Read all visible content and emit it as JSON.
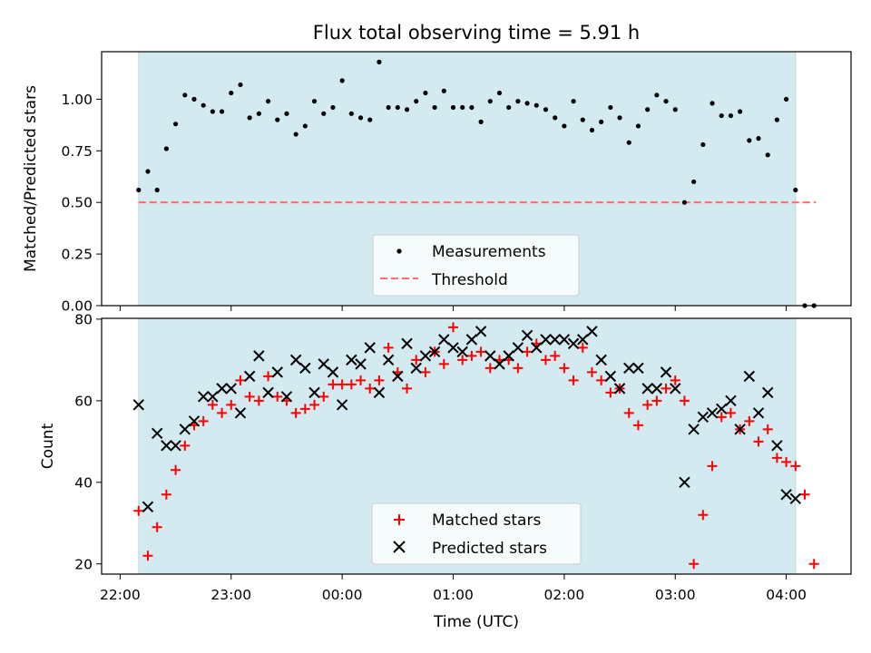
{
  "chart_data": [
    {
      "type": "scatter",
      "title": "Flux total observing time = 5.91 h",
      "ylabel": "Matched/Predicted stars",
      "xlabel": "",
      "ylim": [
        0,
        1.23
      ],
      "xlim": [
        "21:50",
        "04:35"
      ],
      "yticks": [
        "0.00",
        "0.25",
        "0.50",
        "0.75",
        "1.00"
      ],
      "shaded_interval": [
        "22:10",
        "04:05"
      ],
      "shade_color": "#d3eaf0",
      "legend_position": "lower center",
      "legend": [
        "Measurements",
        "Threshold"
      ],
      "threshold": {
        "value": 0.5,
        "from": "22:10",
        "to": "04:16",
        "color": "#ff6b6b"
      },
      "series": [
        {
          "name": "Measurements",
          "color": "#000000",
          "x": [
            "22:10",
            "22:15",
            "22:20",
            "22:25",
            "22:30",
            "22:35",
            "22:40",
            "22:45",
            "22:50",
            "22:55",
            "23:00",
            "23:05",
            "23:10",
            "23:15",
            "23:20",
            "23:25",
            "23:30",
            "23:35",
            "23:40",
            "23:45",
            "23:50",
            "23:55",
            "00:00",
            "00:05",
            "00:10",
            "00:15",
            "00:20",
            "00:25",
            "00:30",
            "00:35",
            "00:40",
            "00:45",
            "00:50",
            "00:55",
            "01:00",
            "01:05",
            "01:10",
            "01:15",
            "01:20",
            "01:25",
            "01:30",
            "01:35",
            "01:40",
            "01:45",
            "01:50",
            "01:55",
            "02:00",
            "02:05",
            "02:10",
            "02:15",
            "02:20",
            "02:25",
            "02:30",
            "02:35",
            "02:40",
            "02:45",
            "02:50",
            "02:55",
            "03:00",
            "03:05",
            "03:10",
            "03:15",
            "03:20",
            "03:25",
            "03:30",
            "03:35",
            "03:40",
            "03:45",
            "03:50",
            "03:55",
            "04:00",
            "04:05",
            "04:10",
            "04:15"
          ],
          "y": [
            0.56,
            0.65,
            0.56,
            0.76,
            0.88,
            1.02,
            1.0,
            0.97,
            0.94,
            0.94,
            1.03,
            1.07,
            0.91,
            0.93,
            0.99,
            0.9,
            0.93,
            0.83,
            0.87,
            0.99,
            0.93,
            0.96,
            1.09,
            0.93,
            0.91,
            0.9,
            1.18,
            0.96,
            0.96,
            0.95,
            0.99,
            1.03,
            0.96,
            1.04,
            0.96,
            0.96,
            0.96,
            0.89,
            0.99,
            1.03,
            0.96,
            0.99,
            0.98,
            0.97,
            0.95,
            0.91,
            0.87,
            0.99,
            0.9,
            0.85,
            0.89,
            0.96,
            0.91,
            0.79,
            0.87,
            0.95,
            1.02,
            0.99,
            0.95,
            0.5,
            0.6,
            0.78,
            0.98,
            0.92,
            0.92,
            0.94,
            0.8,
            0.81,
            0.73,
            0.9,
            1.0,
            0.56,
            0.0,
            0.0
          ]
        }
      ]
    },
    {
      "type": "scatter",
      "title": "",
      "xlabel": "Time (UTC)",
      "ylabel": "Count",
      "ylim": [
        17.5,
        80.2
      ],
      "xlim": [
        "21:50",
        "04:35"
      ],
      "xticks": [
        "22:00",
        "23:00",
        "00:00",
        "01:00",
        "02:00",
        "03:00",
        "04:00"
      ],
      "yticks": [
        "20",
        "40",
        "60",
        "80"
      ],
      "shaded_interval": [
        "22:10",
        "04:05"
      ],
      "shade_color": "#d3eaf0",
      "legend_position": "lower center",
      "legend": [
        "Matched stars",
        "Predicted stars"
      ],
      "series": [
        {
          "name": "Matched stars",
          "color": "#ff0000",
          "x": [
            "22:10",
            "22:15",
            "22:20",
            "22:25",
            "22:30",
            "22:35",
            "22:40",
            "22:45",
            "22:50",
            "22:55",
            "23:00",
            "23:05",
            "23:10",
            "23:15",
            "23:20",
            "23:25",
            "23:30",
            "23:35",
            "23:40",
            "23:45",
            "23:50",
            "23:55",
            "00:00",
            "00:05",
            "00:10",
            "00:15",
            "00:20",
            "00:25",
            "00:30",
            "00:35",
            "00:40",
            "00:45",
            "00:50",
            "00:55",
            "01:00",
            "01:05",
            "01:10",
            "01:15",
            "01:20",
            "01:25",
            "01:30",
            "01:35",
            "01:40",
            "01:45",
            "01:50",
            "01:55",
            "02:00",
            "02:05",
            "02:10",
            "02:15",
            "02:20",
            "02:25",
            "02:30",
            "02:35",
            "02:40",
            "02:45",
            "02:50",
            "02:55",
            "03:00",
            "03:05",
            "03:10",
            "03:15",
            "03:20",
            "03:25",
            "03:30",
            "03:35",
            "03:40",
            "03:45",
            "03:50",
            "03:55",
            "04:00",
            "04:05",
            "04:10",
            "04:15"
          ],
          "y": [
            33,
            22,
            29,
            37,
            43,
            49,
            54,
            55,
            59,
            57,
            59,
            65,
            61,
            60,
            66,
            61,
            60,
            57,
            58,
            59,
            61,
            64,
            64,
            64,
            65,
            63,
            65,
            73,
            67,
            63,
            70,
            67,
            72,
            69,
            78,
            70,
            71,
            72,
            68,
            70,
            70,
            68,
            72,
            74,
            70,
            71,
            68,
            65,
            73,
            67,
            65,
            62,
            63,
            57,
            54,
            59,
            60,
            63,
            65,
            60,
            20,
            32,
            44,
            56,
            57,
            53,
            55,
            50,
            53,
            46,
            45,
            44,
            37,
            20
          ]
        },
        {
          "name": "Predicted stars",
          "color": "#000000",
          "x": [
            "22:10",
            "22:15",
            "22:20",
            "22:25",
            "22:30",
            "22:35",
            "22:40",
            "22:45",
            "22:50",
            "22:55",
            "23:00",
            "23:05",
            "23:10",
            "23:15",
            "23:20",
            "23:25",
            "23:30",
            "23:35",
            "23:40",
            "23:45",
            "23:50",
            "23:55",
            "00:00",
            "00:05",
            "00:10",
            "00:15",
            "00:20",
            "00:25",
            "00:30",
            "00:35",
            "00:40",
            "00:45",
            "00:50",
            "00:55",
            "01:00",
            "01:05",
            "01:10",
            "01:15",
            "01:20",
            "01:25",
            "01:30",
            "01:35",
            "01:40",
            "01:45",
            "01:50",
            "01:55",
            "02:00",
            "02:05",
            "02:10",
            "02:15",
            "02:20",
            "02:25",
            "02:30",
            "02:35",
            "02:40",
            "02:45",
            "02:50",
            "02:55",
            "03:00",
            "03:05",
            "03:10",
            "03:15",
            "03:20",
            "03:25",
            "03:30",
            "03:35",
            "03:40",
            "03:45",
            "03:50",
            "03:55",
            "04:00",
            "04:05"
          ],
          "y": [
            59,
            34,
            52,
            49,
            49,
            53,
            55,
            61,
            61,
            63,
            63,
            57,
            66,
            71,
            62,
            67,
            61,
            70,
            68,
            62,
            69,
            67,
            59,
            70,
            69,
            73,
            62,
            70,
            66,
            74,
            68,
            71,
            72,
            75,
            73,
            72,
            75,
            77,
            71,
            69,
            71,
            73,
            76,
            73,
            75,
            75,
            75,
            74,
            75,
            77,
            70,
            66,
            63,
            68,
            68,
            63,
            63,
            67,
            63,
            40,
            53,
            56,
            57,
            58,
            60,
            53,
            66,
            57,
            62,
            49,
            37,
            36
          ]
        }
      ]
    }
  ]
}
